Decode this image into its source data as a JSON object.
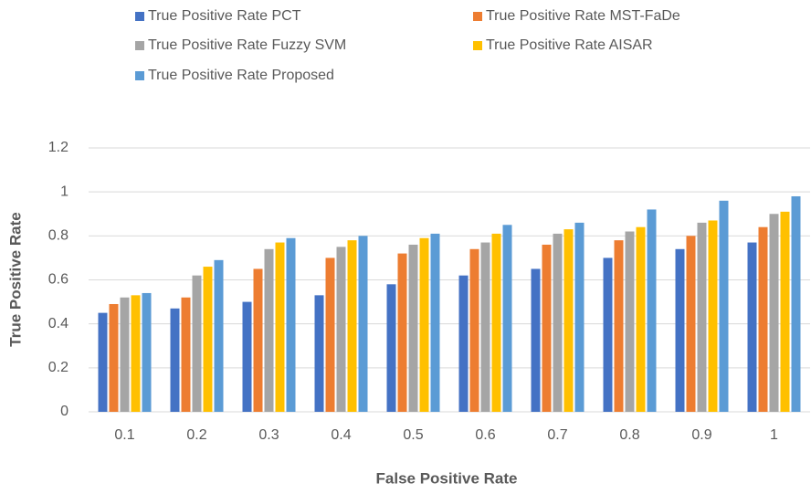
{
  "chart_data": {
    "type": "bar",
    "xlabel": "False Positive Rate",
    "ylabel": "True Positive Rate",
    "categories": [
      "0.1",
      "0.2",
      "0.3",
      "0.4",
      "0.5",
      "0.6",
      "0.7",
      "0.8",
      "0.9",
      "1"
    ],
    "series": [
      {
        "name": "True Positive Rate PCT",
        "color": "#4472c4",
        "values": [
          0.45,
          0.47,
          0.5,
          0.53,
          0.58,
          0.62,
          0.65,
          0.7,
          0.74,
          0.77
        ]
      },
      {
        "name": "True Positive Rate MST-FaDe",
        "color": "#ed7d31",
        "values": [
          0.49,
          0.52,
          0.65,
          0.7,
          0.72,
          0.74,
          0.76,
          0.78,
          0.8,
          0.84
        ]
      },
      {
        "name": "True Positive Rate Fuzzy SVM",
        "color": "#a5a5a5",
        "values": [
          0.52,
          0.62,
          0.74,
          0.75,
          0.76,
          0.77,
          0.81,
          0.82,
          0.86,
          0.9
        ]
      },
      {
        "name": "True Positive Rate AISAR",
        "color": "#ffc000",
        "values": [
          0.53,
          0.66,
          0.77,
          0.78,
          0.79,
          0.81,
          0.83,
          0.84,
          0.87,
          0.91
        ]
      },
      {
        "name": "True Positive Rate Proposed",
        "color": "#5b9bd5",
        "values": [
          0.54,
          0.69,
          0.79,
          0.8,
          0.81,
          0.85,
          0.86,
          0.92,
          0.96,
          0.98
        ]
      }
    ],
    "ylim": [
      0,
      1.2
    ],
    "yticks": [
      0,
      0.2,
      0.4,
      0.6,
      0.8,
      1,
      1.2
    ],
    "grid": true,
    "legend": "top"
  }
}
